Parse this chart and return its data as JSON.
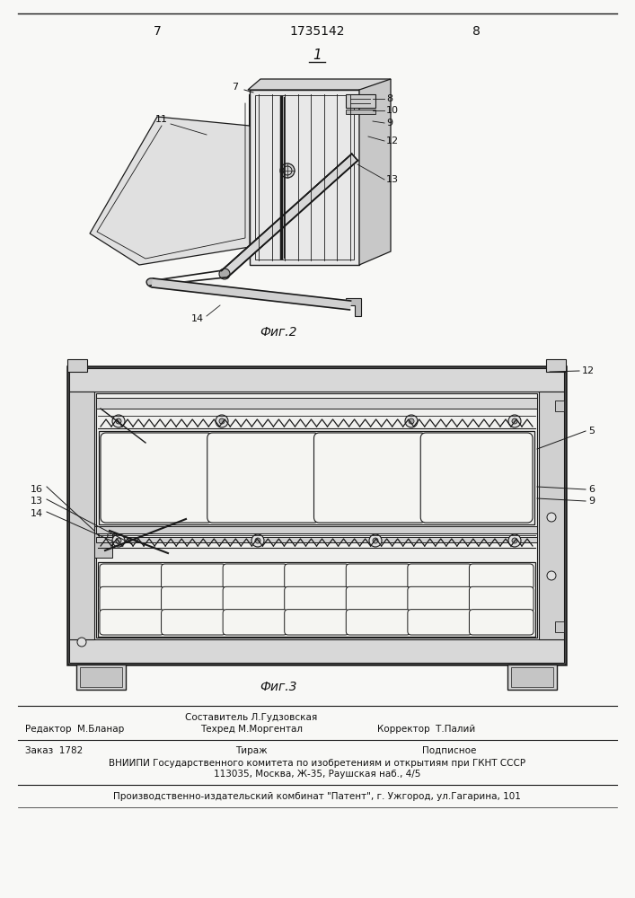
{
  "page_number_left": "7",
  "page_number_right": "8",
  "patent_number": "1735142",
  "fig1_label": "1",
  "fig2_caption": "Фиг.2",
  "fig3_caption": "Фиг.3",
  "footer_line1_col1": "Редактор  М.Бланар",
  "footer_line1_col2": "Составитель Л.Гудзовская",
  "footer_line1_col2b": "Техред М.Моргентал",
  "footer_line1_col3": "Корректор  Т.Палий",
  "footer_line2_col1": "Заказ  1782",
  "footer_line2_col2": "Тираж",
  "footer_line2_col3": "Подписное",
  "footer_line3": "ВНИИПИ Государственного комитета по изобретениям и открытиям при ГКНТ СССР",
  "footer_line4": "113035, Москва, Ж-35, Раушская наб., 4/5",
  "footer_line5": "Производственно-издательский комбинат \"Патент\", г. Ужгород, ул.Гагарина, 101",
  "bg_color": "#f8f8f6",
  "line_color": "#1a1a1a",
  "text_color": "#111111"
}
